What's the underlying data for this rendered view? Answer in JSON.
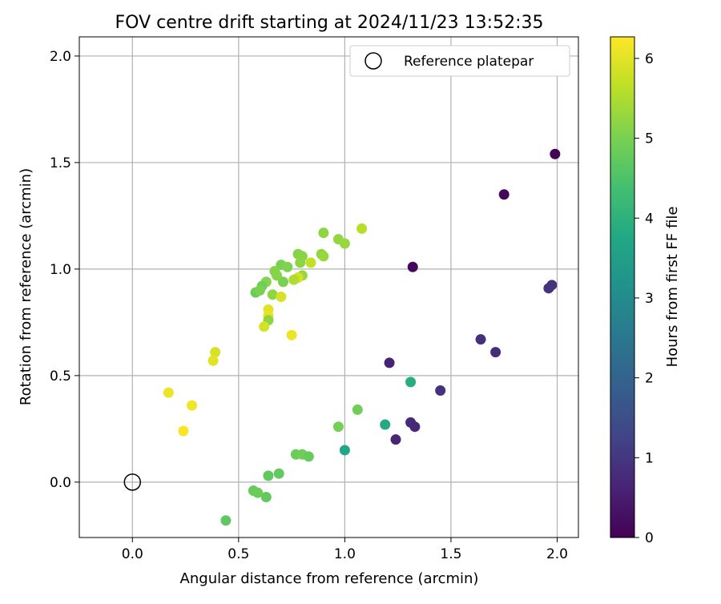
{
  "chart_data": {
    "type": "scatter",
    "title": "FOV centre drift starting at 2024/11/23 13:52:35",
    "xlabel": "Angular distance from reference (arcmin)",
    "ylabel": "Rotation from reference (arcmin)",
    "xlim": [
      -0.25,
      2.1
    ],
    "ylim": [
      -0.26,
      2.09
    ],
    "x_ticks": [
      0.0,
      0.5,
      1.0,
      1.5,
      2.0
    ],
    "x_tick_labels": [
      "0.0",
      "0.5",
      "1.0",
      "1.5",
      "2.0"
    ],
    "y_ticks": [
      0.0,
      0.5,
      1.0,
      1.5,
      2.0
    ],
    "y_tick_labels": [
      "0.0",
      "0.5",
      "1.0",
      "1.5",
      "2.0"
    ],
    "grid": true,
    "legend": {
      "placement": "top-right",
      "entries": [
        {
          "label": "Reference platepar",
          "marker": "open-circle"
        }
      ]
    },
    "reference_point": {
      "x": 0.0,
      "y": 0.0
    },
    "colorbar": {
      "label": "Hours from first FF file",
      "range": [
        0,
        6.27
      ],
      "ticks": [
        0,
        1,
        2,
        3,
        4,
        5,
        6
      ],
      "tick_labels": [
        "0",
        "1",
        "2",
        "3",
        "4",
        "5",
        "6"
      ],
      "colormap": "viridis"
    },
    "points": [
      {
        "x": 1.99,
        "y": 1.54,
        "c": 0.05
      },
      {
        "x": 1.75,
        "y": 1.35,
        "c": 0.1
      },
      {
        "x": 1.32,
        "y": 1.01,
        "c": 0.15
      },
      {
        "x": 1.96,
        "y": 0.91,
        "c": 0.9
      },
      {
        "x": 1.975,
        "y": 0.925,
        "c": 0.95
      },
      {
        "x": 1.64,
        "y": 0.67,
        "c": 0.85
      },
      {
        "x": 1.71,
        "y": 0.61,
        "c": 0.8
      },
      {
        "x": 1.21,
        "y": 0.56,
        "c": 0.6
      },
      {
        "x": 1.45,
        "y": 0.43,
        "c": 0.9
      },
      {
        "x": 1.31,
        "y": 0.28,
        "c": 0.75
      },
      {
        "x": 1.33,
        "y": 0.26,
        "c": 0.7
      },
      {
        "x": 1.24,
        "y": 0.2,
        "c": 0.65
      },
      {
        "x": 1.31,
        "y": 0.47,
        "c": 3.9
      },
      {
        "x": 1.19,
        "y": 0.27,
        "c": 3.8
      },
      {
        "x": 1.0,
        "y": 0.15,
        "c": 3.7
      },
      {
        "x": 1.06,
        "y": 0.34,
        "c": 4.9
      },
      {
        "x": 0.97,
        "y": 0.26,
        "c": 4.95
      },
      {
        "x": 0.77,
        "y": 0.13,
        "c": 4.85
      },
      {
        "x": 0.8,
        "y": 0.13,
        "c": 4.9
      },
      {
        "x": 0.83,
        "y": 0.12,
        "c": 4.8
      },
      {
        "x": 0.69,
        "y": 0.04,
        "c": 4.75
      },
      {
        "x": 0.64,
        "y": 0.03,
        "c": 4.7
      },
      {
        "x": 0.57,
        "y": -0.04,
        "c": 4.8
      },
      {
        "x": 0.59,
        "y": -0.05,
        "c": 4.85
      },
      {
        "x": 0.63,
        "y": -0.07,
        "c": 4.75
      },
      {
        "x": 0.44,
        "y": -0.18,
        "c": 4.7
      },
      {
        "x": 0.9,
        "y": 1.17,
        "c": 5.2
      },
      {
        "x": 0.97,
        "y": 1.14,
        "c": 5.25
      },
      {
        "x": 1.0,
        "y": 1.12,
        "c": 5.3
      },
      {
        "x": 1.08,
        "y": 1.19,
        "c": 5.6
      },
      {
        "x": 0.89,
        "y": 1.07,
        "c": 5.2
      },
      {
        "x": 0.9,
        "y": 1.06,
        "c": 5.3
      },
      {
        "x": 0.78,
        "y": 1.07,
        "c": 5.1
      },
      {
        "x": 0.8,
        "y": 1.06,
        "c": 5.15
      },
      {
        "x": 0.79,
        "y": 1.03,
        "c": 5.2
      },
      {
        "x": 0.7,
        "y": 1.02,
        "c": 5.0
      },
      {
        "x": 0.73,
        "y": 1.01,
        "c": 5.05
      },
      {
        "x": 0.67,
        "y": 0.99,
        "c": 5.1
      },
      {
        "x": 0.68,
        "y": 0.97,
        "c": 5.15
      },
      {
        "x": 0.8,
        "y": 0.97,
        "c": 5.3
      },
      {
        "x": 0.84,
        "y": 1.03,
        "c": 5.7
      },
      {
        "x": 0.78,
        "y": 0.96,
        "c": 5.85
      },
      {
        "x": 0.76,
        "y": 0.95,
        "c": 5.5
      },
      {
        "x": 0.71,
        "y": 0.94,
        "c": 5.0
      },
      {
        "x": 0.63,
        "y": 0.94,
        "c": 5.1
      },
      {
        "x": 0.61,
        "y": 0.92,
        "c": 4.9
      },
      {
        "x": 0.58,
        "y": 0.89,
        "c": 4.85
      },
      {
        "x": 0.6,
        "y": 0.9,
        "c": 5.0
      },
      {
        "x": 0.66,
        "y": 0.88,
        "c": 5.2
      },
      {
        "x": 0.7,
        "y": 0.87,
        "c": 5.9
      },
      {
        "x": 0.64,
        "y": 0.81,
        "c": 6.0
      },
      {
        "x": 0.64,
        "y": 0.78,
        "c": 6.05
      },
      {
        "x": 0.64,
        "y": 0.76,
        "c": 5.2
      },
      {
        "x": 0.62,
        "y": 0.73,
        "c": 5.85
      },
      {
        "x": 0.75,
        "y": 0.69,
        "c": 6.1
      },
      {
        "x": 0.39,
        "y": 0.61,
        "c": 5.9
      },
      {
        "x": 0.38,
        "y": 0.57,
        "c": 6.0
      },
      {
        "x": 0.17,
        "y": 0.42,
        "c": 6.1
      },
      {
        "x": 0.28,
        "y": 0.36,
        "c": 6.15
      },
      {
        "x": 0.24,
        "y": 0.24,
        "c": 6.2
      }
    ]
  }
}
